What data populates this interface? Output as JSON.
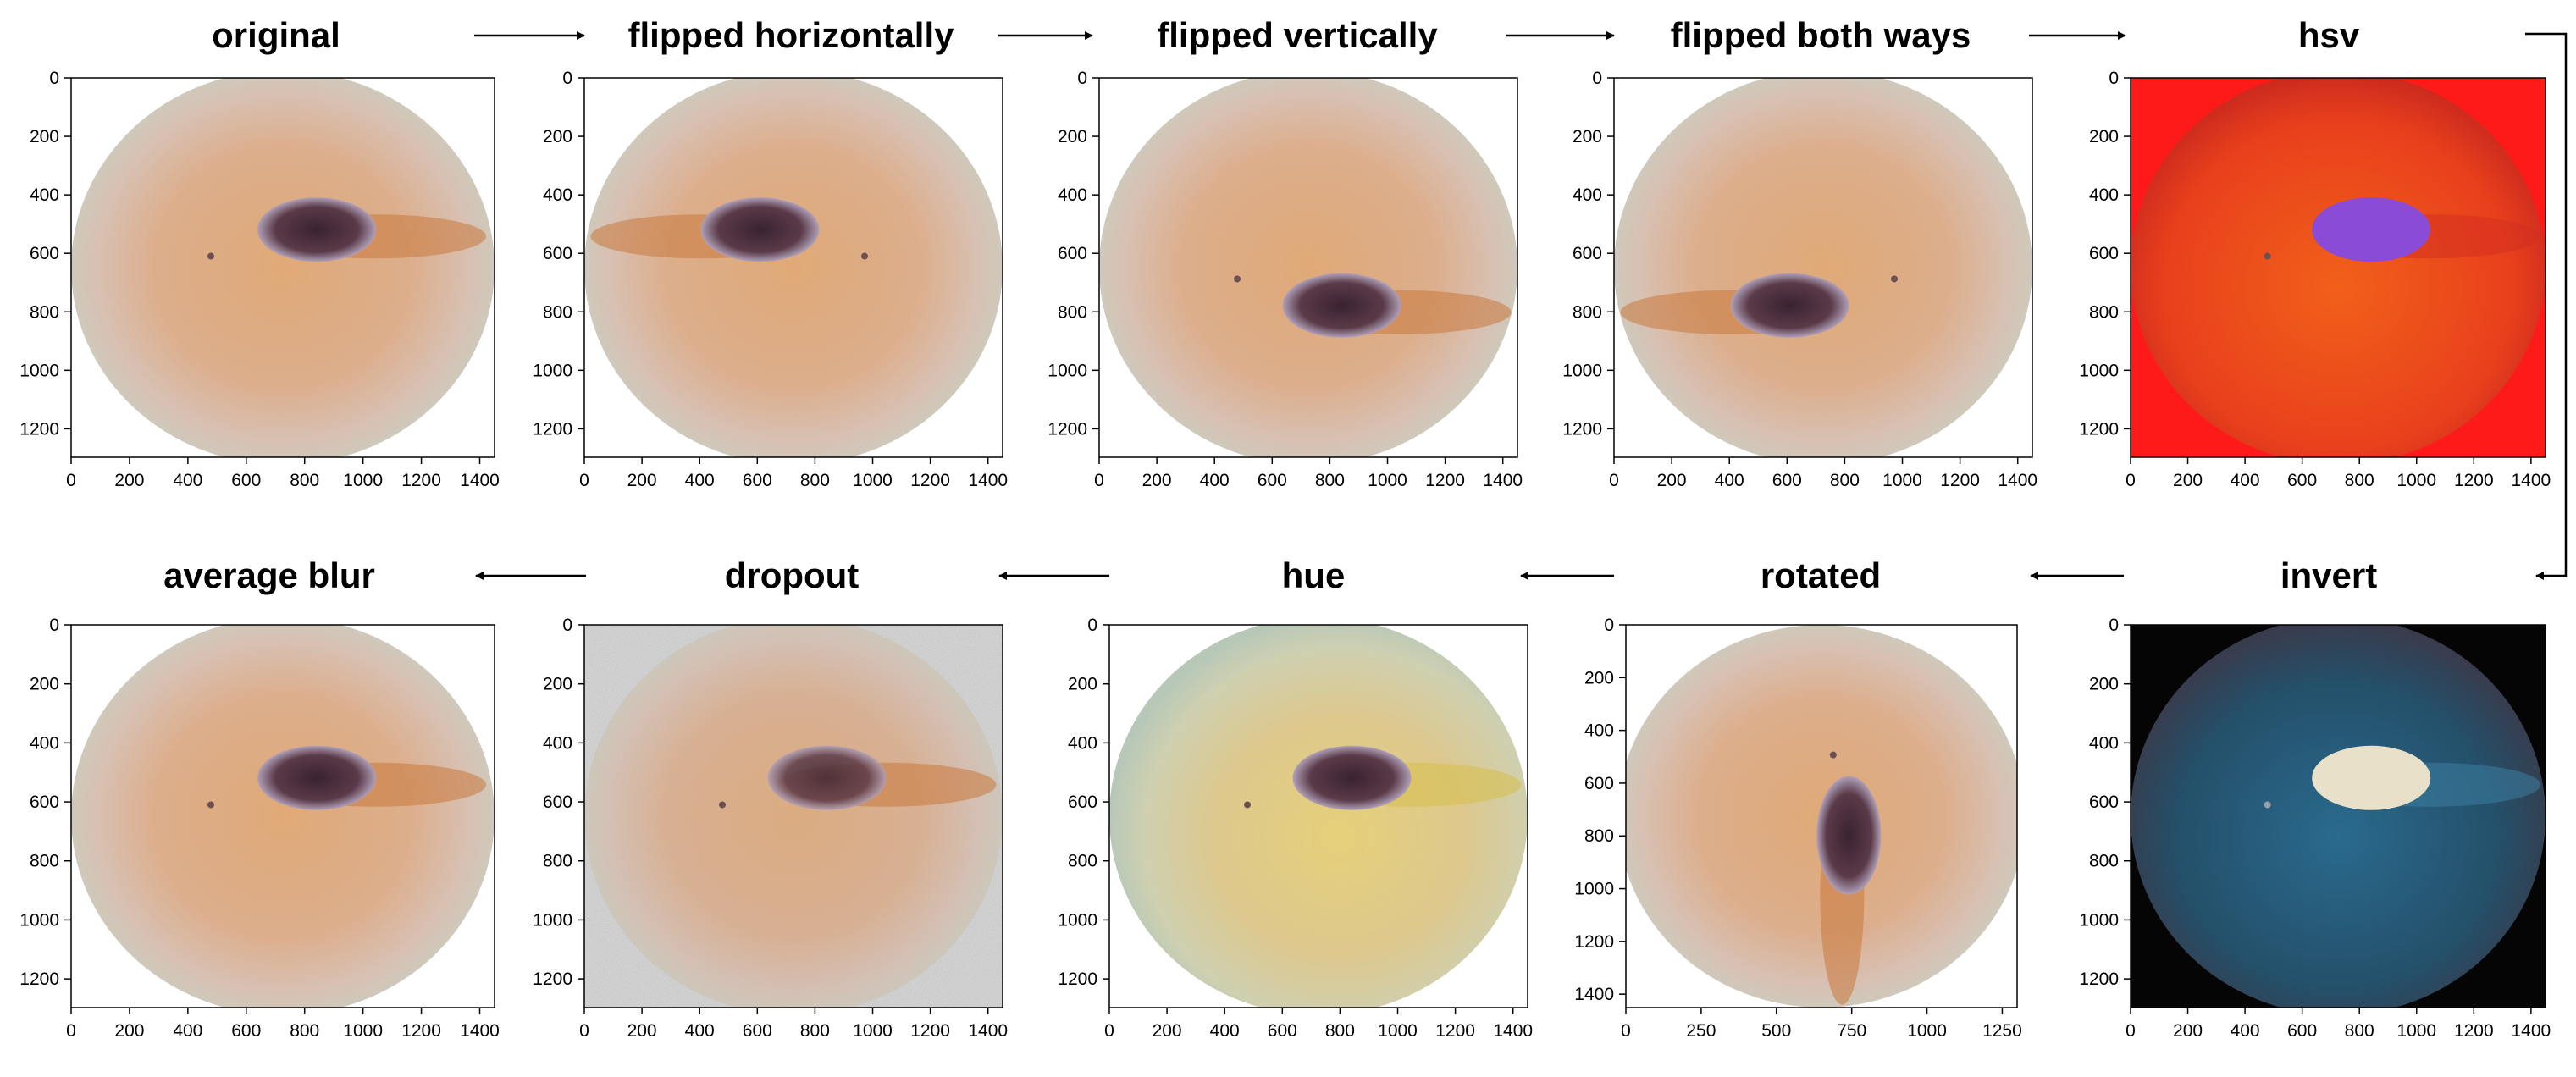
{
  "colors": {
    "skin": "#d9a57f",
    "lesion": "#4a2e3c",
    "hsv_bg": "#ff1a1a",
    "hsv_lesion": "#8a4cd6",
    "invert_bg": "#050505",
    "invert_disc": "#2d5770",
    "invert_lesion": "#e8e0c8"
  },
  "panels": [
    {
      "id": "original",
      "title": "original",
      "style": "normal",
      "xticks": [
        "0",
        "200",
        "400",
        "600",
        "800",
        "1000",
        "1200",
        "1400"
      ],
      "yticks": [
        "0",
        "200",
        "400",
        "600",
        "800",
        "1000",
        "1200"
      ],
      "tall": false
    },
    {
      "id": "flipped-horizontally",
      "title": "flipped horizontally",
      "style": "fliph",
      "xticks": [
        "0",
        "200",
        "400",
        "600",
        "800",
        "1000",
        "1200",
        "1400"
      ],
      "yticks": [
        "0",
        "200",
        "400",
        "600",
        "800",
        "1000",
        "1200"
      ],
      "tall": false
    },
    {
      "id": "flipped-vertically",
      "title": "flipped vertically",
      "style": "flipv",
      "xticks": [
        "0",
        "200",
        "400",
        "600",
        "800",
        "1000",
        "1200",
        "1400"
      ],
      "yticks": [
        "0",
        "200",
        "400",
        "600",
        "800",
        "1000",
        "1200"
      ],
      "tall": false
    },
    {
      "id": "flipped-both-ways",
      "title": "flipped both ways",
      "style": "flipboth",
      "xticks": [
        "0",
        "200",
        "400",
        "600",
        "800",
        "1000",
        "1200",
        "1400"
      ],
      "yticks": [
        "0",
        "200",
        "400",
        "600",
        "800",
        "1000",
        "1200"
      ],
      "tall": false
    },
    {
      "id": "hsv",
      "title": "hsv",
      "style": "hsv",
      "xticks": [
        "0",
        "200",
        "400",
        "600",
        "800",
        "1000",
        "1200",
        "1400"
      ],
      "yticks": [
        "0",
        "200",
        "400",
        "600",
        "800",
        "1000",
        "1200"
      ],
      "tall": false
    },
    {
      "id": "average-blur",
      "title": "average blur",
      "style": "normal",
      "xticks": [
        "0",
        "200",
        "400",
        "600",
        "800",
        "1000",
        "1200",
        "1400"
      ],
      "yticks": [
        "0",
        "200",
        "400",
        "600",
        "800",
        "1000",
        "1200"
      ],
      "tall": false
    },
    {
      "id": "dropout",
      "title": "dropout",
      "style": "dropout",
      "xticks": [
        "0",
        "200",
        "400",
        "600",
        "800",
        "1000",
        "1200",
        "1400"
      ],
      "yticks": [
        "0",
        "200",
        "400",
        "600",
        "800",
        "1000",
        "1200"
      ],
      "tall": false
    },
    {
      "id": "hue",
      "title": "hue",
      "style": "hue",
      "xticks": [
        "0",
        "200",
        "400",
        "600",
        "800",
        "1000",
        "1200",
        "1400"
      ],
      "yticks": [
        "0",
        "200",
        "400",
        "600",
        "800",
        "1000",
        "1200"
      ],
      "tall": false
    },
    {
      "id": "rotated",
      "title": "rotated",
      "style": "rotated",
      "xticks": [
        "0",
        "250",
        "500",
        "750",
        "1000",
        "1250"
      ],
      "yticks": [
        "0",
        "200",
        "400",
        "600",
        "800",
        "1000",
        "1200",
        "1400"
      ],
      "tall": true
    },
    {
      "id": "invert",
      "title": "invert",
      "style": "invert",
      "xticks": [
        "0",
        "200",
        "400",
        "600",
        "800",
        "1000",
        "1200",
        "1400"
      ],
      "yticks": [
        "0",
        "200",
        "400",
        "600",
        "800",
        "1000",
        "1200"
      ],
      "tall": false
    }
  ]
}
